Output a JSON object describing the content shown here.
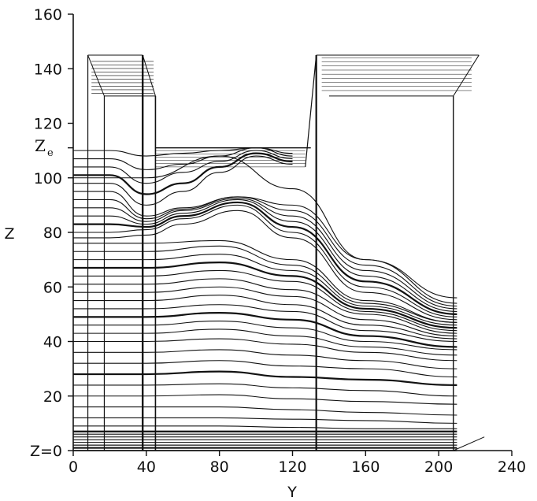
{
  "chart_data": {
    "type": "line",
    "title": "",
    "xlabel": "Y",
    "ylabel": "Z",
    "xlim": [
      0,
      240
    ],
    "ylim": [
      0,
      160
    ],
    "x_ticks": [
      "0",
      "40",
      "80",
      "120",
      "160",
      "200",
      "240"
    ],
    "y_ticks": [
      "Z=0",
      "20",
      "40",
      "60",
      "80",
      "100",
      "120",
      "140",
      "160"
    ],
    "annotation_ze": {
      "main": "Z",
      "sub": "e",
      "value": 111
    },
    "grid": false,
    "legend": "none",
    "colors": {
      "ink": "#111111",
      "background": "#ffffff"
    },
    "series": [
      {
        "x": [
          0,
          40,
          80,
          120,
          160,
          210
        ],
        "values": [
          1,
          1,
          1,
          1,
          1,
          1
        ]
      },
      {
        "x": [
          0,
          40,
          80,
          120,
          160,
          210
        ],
        "values": [
          2,
          2,
          2,
          2,
          2,
          2
        ]
      },
      {
        "x": [
          0,
          40,
          80,
          120,
          160,
          210
        ],
        "values": [
          3,
          3,
          3,
          3,
          3,
          3
        ]
      },
      {
        "x": [
          0,
          40,
          80,
          120,
          160,
          210
        ],
        "values": [
          4,
          4,
          4,
          4,
          4,
          4
        ]
      },
      {
        "x": [
          0,
          40,
          80,
          120,
          160,
          210
        ],
        "values": [
          5,
          5,
          5,
          5,
          5,
          5
        ]
      },
      {
        "x": [
          0,
          40,
          80,
          120,
          160,
          210
        ],
        "values": [
          6,
          6,
          6,
          6,
          6,
          6
        ]
      },
      {
        "x": [
          0,
          40,
          80,
          120,
          160,
          210
        ],
        "values": [
          7,
          7,
          7,
          7,
          7,
          7
        ]
      },
      {
        "x": [
          0,
          40,
          80,
          120,
          160,
          210
        ],
        "values": [
          9,
          9,
          9,
          8.5,
          8,
          8
        ]
      },
      {
        "x": [
          0,
          40,
          80,
          120,
          160,
          210
        ],
        "values": [
          12,
          12,
          12,
          11.5,
          11,
          10
        ]
      },
      {
        "x": [
          0,
          40,
          80,
          120,
          160,
          210
        ],
        "values": [
          16,
          16,
          16,
          15,
          14,
          13
        ]
      },
      {
        "x": [
          0,
          40,
          80,
          120,
          160,
          210
        ],
        "values": [
          20,
          20,
          20.5,
          19,
          18,
          17
        ]
      },
      {
        "x": [
          0,
          40,
          80,
          120,
          160,
          210
        ],
        "values": [
          24,
          24,
          24.5,
          23,
          22,
          20
        ]
      },
      {
        "x": [
          0,
          40,
          80,
          120,
          160,
          210
        ],
        "values": [
          28,
          28,
          29,
          27,
          26,
          24
        ]
      },
      {
        "x": [
          0,
          40,
          80,
          120,
          160,
          210
        ],
        "values": [
          32,
          32,
          33,
          31,
          30,
          27
        ]
      },
      {
        "x": [
          0,
          40,
          80,
          120,
          160,
          210
        ],
        "values": [
          36,
          36,
          37,
          35,
          33,
          30
        ]
      },
      {
        "x": [
          0,
          40,
          80,
          120,
          160,
          210
        ],
        "values": [
          40,
          40,
          41,
          39,
          36,
          33
        ]
      },
      {
        "x": [
          0,
          40,
          80,
          120,
          160,
          210
        ],
        "values": [
          43,
          43,
          44.5,
          42,
          38,
          35
        ]
      },
      {
        "x": [
          0,
          40,
          80,
          120,
          160,
          210
        ],
        "values": [
          46,
          46,
          47.5,
          45,
          40,
          37
        ]
      },
      {
        "x": [
          0,
          40,
          80,
          120,
          160,
          210
        ],
        "values": [
          49,
          49,
          50.5,
          48,
          42,
          38
        ]
      },
      {
        "x": [
          0,
          40,
          80,
          120,
          160,
          210
        ],
        "values": [
          52,
          52,
          53.5,
          51,
          44,
          40
        ]
      },
      {
        "x": [
          0,
          40,
          80,
          120,
          160,
          210
        ],
        "values": [
          55,
          55,
          57,
          53.5,
          46,
          41
        ]
      },
      {
        "x": [
          0,
          40,
          80,
          120,
          160,
          210
        ],
        "values": [
          58,
          58,
          60,
          56.5,
          48,
          42
        ]
      },
      {
        "x": [
          0,
          40,
          80,
          120,
          160,
          210
        ],
        "values": [
          61,
          61,
          63,
          59,
          50,
          43
        ]
      },
      {
        "x": [
          0,
          40,
          80,
          120,
          160,
          210
        ],
        "values": [
          64,
          64,
          66,
          62,
          51,
          44
        ]
      },
      {
        "x": [
          0,
          40,
          80,
          120,
          160,
          210
        ],
        "values": [
          67,
          67,
          69,
          64,
          52,
          45
        ]
      },
      {
        "x": [
          0,
          40,
          80,
          120,
          160,
          210
        ],
        "values": [
          70,
          70,
          72,
          66,
          53,
          46
        ]
      },
      {
        "x": [
          0,
          40,
          80,
          120,
          160,
          210
        ],
        "values": [
          73,
          73,
          75,
          68,
          54,
          47
        ]
      },
      {
        "x": [
          0,
          40,
          80,
          120,
          160,
          210
        ],
        "values": [
          76,
          76,
          77,
          70,
          55,
          47
        ]
      },
      {
        "x": [
          0,
          20,
          40,
          60,
          90,
          120,
          160,
          210
        ],
        "values": [
          78,
          78,
          79,
          83,
          88,
          78,
          58,
          48
        ]
      },
      {
        "x": [
          0,
          20,
          40,
          60,
          90,
          120,
          160,
          210
        ],
        "values": [
          80,
          80,
          81,
          85,
          90,
          80,
          60,
          49
        ]
      },
      {
        "x": [
          0,
          20,
          40,
          60,
          90,
          120,
          160,
          210
        ],
        "values": [
          83,
          83,
          82,
          86,
          91,
          82,
          62,
          50
        ]
      },
      {
        "x": [
          0,
          20,
          40,
          60,
          90,
          120,
          160,
          210
        ],
        "values": [
          86,
          86,
          83,
          87,
          92,
          84,
          64,
          51
        ]
      },
      {
        "x": [
          0,
          20,
          40,
          60,
          90,
          120,
          160,
          210
        ],
        "values": [
          89,
          89,
          84,
          88,
          92.5,
          86,
          66,
          52
        ]
      },
      {
        "x": [
          0,
          20,
          40,
          60,
          90,
          120,
          160,
          210
        ],
        "values": [
          92,
          92,
          85,
          88.5,
          93,
          88,
          68,
          53
        ]
      },
      {
        "x": [
          0,
          20,
          40,
          60,
          90,
          120,
          160,
          210
        ],
        "values": [
          95,
          95,
          86,
          89,
          93,
          90,
          70,
          54
        ]
      },
      {
        "x": [
          0,
          20,
          40,
          60,
          80,
          100,
          120
        ],
        "values": [
          98,
          98,
          90,
          95,
          102,
          108,
          105
        ]
      },
      {
        "x": [
          0,
          20,
          40,
          60,
          80,
          100,
          120
        ],
        "values": [
          101,
          101,
          94,
          98,
          104,
          109,
          106
        ]
      },
      {
        "x": [
          0,
          20,
          40,
          60,
          80,
          100,
          120
        ],
        "values": [
          104,
          104,
          98,
          102,
          106,
          110,
          107
        ]
      },
      {
        "x": [
          0,
          20,
          40,
          60,
          80,
          100,
          120
        ],
        "values": [
          107,
          107,
          103,
          105,
          108,
          111,
          108
        ]
      },
      {
        "x": [
          0,
          20,
          40,
          60,
          80,
          100,
          120
        ],
        "values": [
          110,
          110,
          108,
          109,
          110,
          111,
          109
        ]
      },
      {
        "x": [
          0,
          40,
          80,
          120,
          160,
          210
        ],
        "values": [
          100,
          100,
          108,
          96,
          70,
          56
        ]
      }
    ]
  }
}
